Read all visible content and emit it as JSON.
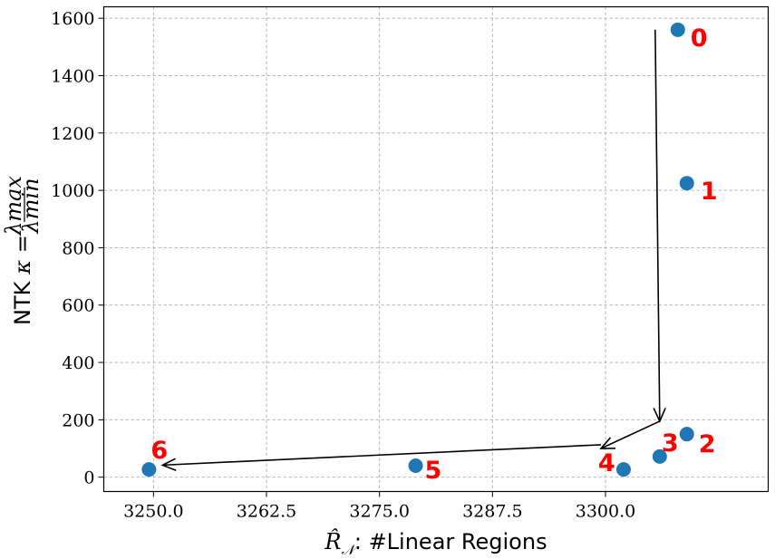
{
  "chart_data": {
    "type": "scatter",
    "title": "",
    "xlabel_math": "R̂",
    "xlabel_sub": "𝒩",
    "xlabel_text": ": #Linear Regions",
    "ylabel_text": "NTK",
    "ylabel_math": "κ =",
    "ylabel_frac_num": "λmax",
    "ylabel_frac_den": "λmin",
    "xlim": [
      3244.5,
      3318.0
    ],
    "ylim": [
      -50,
      1640
    ],
    "xticks": [
      3250.0,
      3262.5,
      3275.0,
      3287.5,
      3300.0
    ],
    "xtick_labels": [
      "3250.0",
      "3262.5",
      "3275.0",
      "3287.5",
      "3300.0"
    ],
    "yticks": [
      0,
      200,
      400,
      600,
      800,
      1000,
      1200,
      1400,
      1600
    ],
    "ytick_labels": [
      "0",
      "200",
      "400",
      "600",
      "800",
      "1000",
      "1200",
      "1400",
      "1600"
    ],
    "grid": true,
    "point_color": "#1f77b4",
    "label_color": "#ff0000",
    "points": [
      {
        "label": "0",
        "x": 3308.0,
        "y": 1560
      },
      {
        "label": "1",
        "x": 3309.0,
        "y": 1025
      },
      {
        "label": "2",
        "x": 3309.0,
        "y": 150
      },
      {
        "label": "3",
        "x": 3306.0,
        "y": 72
      },
      {
        "label": "4",
        "x": 3302.0,
        "y": 27
      },
      {
        "label": "5",
        "x": 3279.0,
        "y": 40
      },
      {
        "label": "6",
        "x": 3249.5,
        "y": 27
      }
    ],
    "arrows": [
      {
        "from": [
          3305.5,
          1560
        ],
        "to": [
          3306.0,
          195
        ]
      },
      {
        "from": [
          3306.0,
          195
        ],
        "to": [
          3299.5,
          100
        ]
      },
      {
        "from": [
          3299.5,
          113
        ],
        "to": [
          3251.0,
          42
        ]
      }
    ]
  }
}
